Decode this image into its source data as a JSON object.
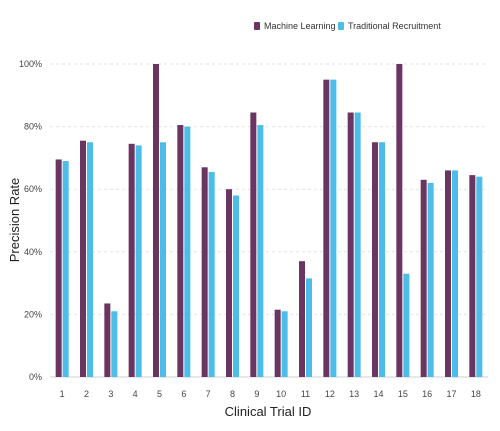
{
  "chart_data": {
    "type": "bar",
    "title": "",
    "xlabel": "Clinical Trial ID",
    "ylabel": "Precision Rate",
    "categories": [
      "1",
      "2",
      "3",
      "4",
      "5",
      "6",
      "7",
      "8",
      "9",
      "10",
      "11",
      "12",
      "13",
      "14",
      "15",
      "16",
      "17",
      "18"
    ],
    "series": [
      {
        "name": "Machine Learning",
        "color": "#6b3562",
        "values": [
          69.5,
          75.5,
          23.5,
          74.5,
          100,
          80.5,
          67,
          60,
          84.5,
          21.5,
          37,
          95,
          84.5,
          75,
          100,
          63,
          66,
          64.5
        ]
      },
      {
        "name": "Traditional Recruitment",
        "color": "#4bbde8",
        "values": [
          69,
          75,
          21,
          74,
          75,
          80,
          65.5,
          58,
          80.5,
          21,
          31.5,
          95,
          84.5,
          75,
          33,
          62,
          66,
          64
        ]
      }
    ],
    "ylim": [
      0,
      100
    ],
    "yticks": [
      "0%",
      "20%",
      "40%",
      "60%",
      "80%",
      "100%"
    ],
    "grid": true,
    "legend_position": "top-right"
  }
}
